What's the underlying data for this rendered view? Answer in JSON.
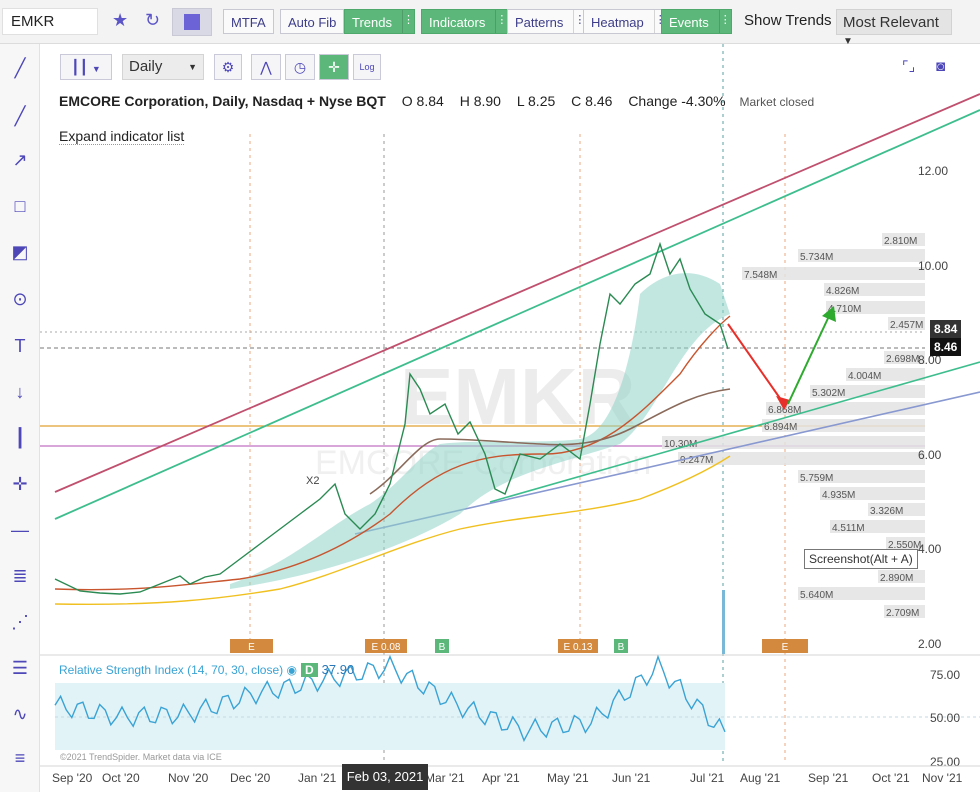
{
  "toolbar": {
    "ticker": "EMKR",
    "buttons": [
      {
        "label": "MTFA",
        "style": "plain"
      },
      {
        "label": "Auto Fib",
        "style": "plain"
      },
      {
        "label": "Trends",
        "style": "green"
      },
      {
        "label": "Indicators",
        "style": "green"
      },
      {
        "label": "Patterns",
        "style": "plain"
      },
      {
        "label": "Heatmap",
        "style": "plain"
      },
      {
        "label": "Events",
        "style": "green"
      }
    ],
    "show_trends_label": "Show Trends",
    "sort_value": "Most Relevant"
  },
  "chart_controls": {
    "interval": "Daily",
    "log_label": "Log"
  },
  "header": {
    "title": "EMCORE Corporation, Daily, Nasdaq + Nyse BQT",
    "open_label": "O",
    "open": "8.84",
    "high_label": "H",
    "high": "8.90",
    "low_label": "L",
    "low": "8.25",
    "close_label": "C",
    "close": "8.46",
    "change_label": "Change",
    "change": "-4.30%",
    "market_status": "Market closed"
  },
  "expand_indicator_text": "Expand indicator list",
  "watermark": {
    "symbol": "EMKR",
    "name": "EMCORE Corporation"
  },
  "price_axis": {
    "ticks": [
      "12.00",
      "10.00",
      "8.00",
      "6.00",
      "4.00",
      "2.00"
    ]
  },
  "price_tags": {
    "prev": "8.84",
    "last": "8.46"
  },
  "volume_profile_labels": [
    "2.810M",
    "5.734M",
    "7.548M",
    "4.826M",
    "4.710M",
    "2.457M",
    "2.698M",
    "4.004M",
    "5.302M",
    "6.868M",
    "6.894M",
    "10.30M",
    "9.247M",
    "5.759M",
    "4.935M",
    "3.326M",
    "4.511M",
    "2.550M",
    "2.890M",
    "5.640M",
    "2.709M"
  ],
  "events": [
    {
      "label": "E",
      "type": "earnings"
    },
    {
      "label": "E 0.08",
      "type": "earnings"
    },
    {
      "label": "B",
      "type": "buyback"
    },
    {
      "label": "E 0.13",
      "type": "earnings"
    },
    {
      "label": "B",
      "type": "buyback"
    },
    {
      "label": "E",
      "type": "earnings"
    }
  ],
  "chart_marker": "X2",
  "rsi": {
    "label": "Relative Strength Index (14, 70, 30, close)",
    "d_badge": "D",
    "value": "37.90",
    "ticks": [
      "75.00",
      "50.00",
      "25.00"
    ]
  },
  "x_axis": {
    "ticks": [
      "Sep '20",
      "Oct '20",
      "Nov '20",
      "Dec '20",
      "Jan '21",
      "Feb",
      "Mar '21",
      "Apr '21",
      "May '21",
      "Jun '21",
      "Jul '21",
      "Aug '21",
      "Sep '21",
      "Oct '21",
      "Nov '21"
    ]
  },
  "crosshair_date": "Feb 03, 2021",
  "screenshot_tip": "Screenshot(Alt + A)",
  "copyright": "©2021 TrendSpider. Market data via ICE",
  "colors": {
    "accent": "#5b55c8",
    "green": "#5cb87a",
    "event": "#d38a3e",
    "up_arrow": "#2eaa2e",
    "down_arrow": "#e8302a"
  },
  "chart_data": {
    "type": "line",
    "title": "EMCORE Corporation, Daily, Nasdaq + Nyse BQT",
    "x": [
      "Sep '20",
      "Oct '20",
      "Nov '20",
      "Dec '20",
      "Jan '21",
      "Feb",
      "Mar '21",
      "Apr '21",
      "May '21",
      "Jun '21",
      "Jul '21"
    ],
    "series": [
      {
        "values": [
          3.4,
          3.3,
          3.5,
          4.3,
          5.2,
          7.8,
          6.8,
          5.4,
          6.3,
          9.6,
          8.46
        ]
      }
    ],
    "ylim": [
      2,
      13
    ],
    "rsi": {
      "values": [
        55,
        48,
        50,
        62,
        70,
        78,
        55,
        40,
        45,
        78,
        37.9
      ],
      "ylim": [
        20,
        85
      ]
    }
  }
}
